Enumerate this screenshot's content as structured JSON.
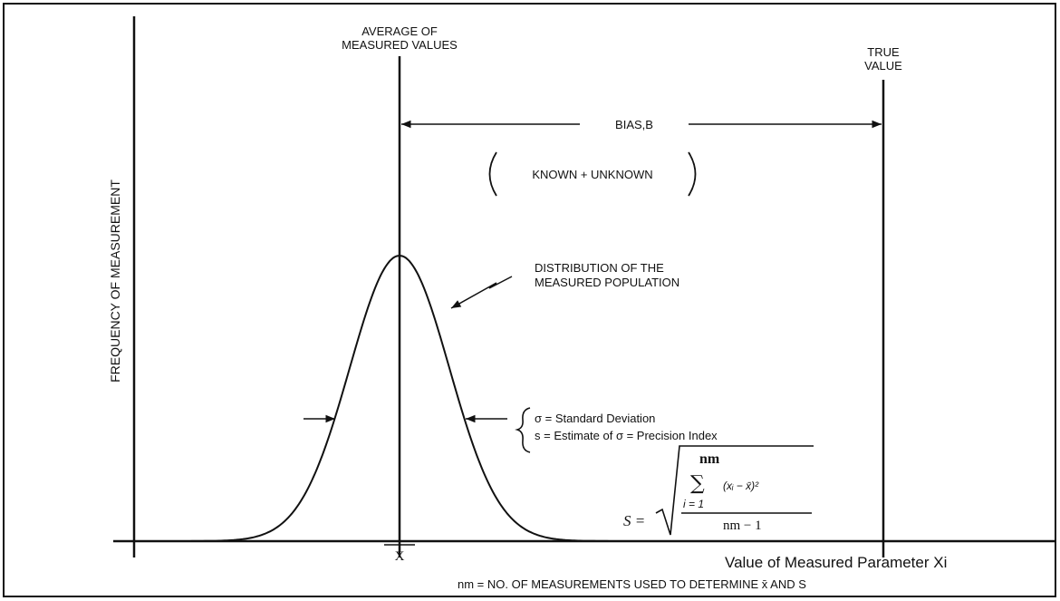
{
  "labels": {
    "average": [
      "AVERAGE OF",
      "MEASURED VALUES"
    ],
    "true_value": [
      "TRUE",
      "VALUE"
    ],
    "bias": "BIAS,B",
    "known_unknown": "KNOWN + UNKNOWN",
    "distribution": [
      "DISTRIBUTION OF THE",
      "MEASURED POPULATION"
    ],
    "y_axis": "FREQUENCY OF MEASUREMENT",
    "x_axis": "Value of Measured Parameter Xi",
    "mean_symbol": "X",
    "definitions": [
      "σ = Standard Deviation",
      "s = Estimate of σ = Precision Index"
    ],
    "formula": {
      "lhs": "S =",
      "upper": "nm",
      "sum": "∑",
      "lower": "i = 1",
      "term": "(xᵢ − x̄)²",
      "denominator": "nm − 1"
    },
    "footnote": "nm = NO. OF MEASUREMENTS USED TO DETERMINE x̄ AND S"
  }
}
